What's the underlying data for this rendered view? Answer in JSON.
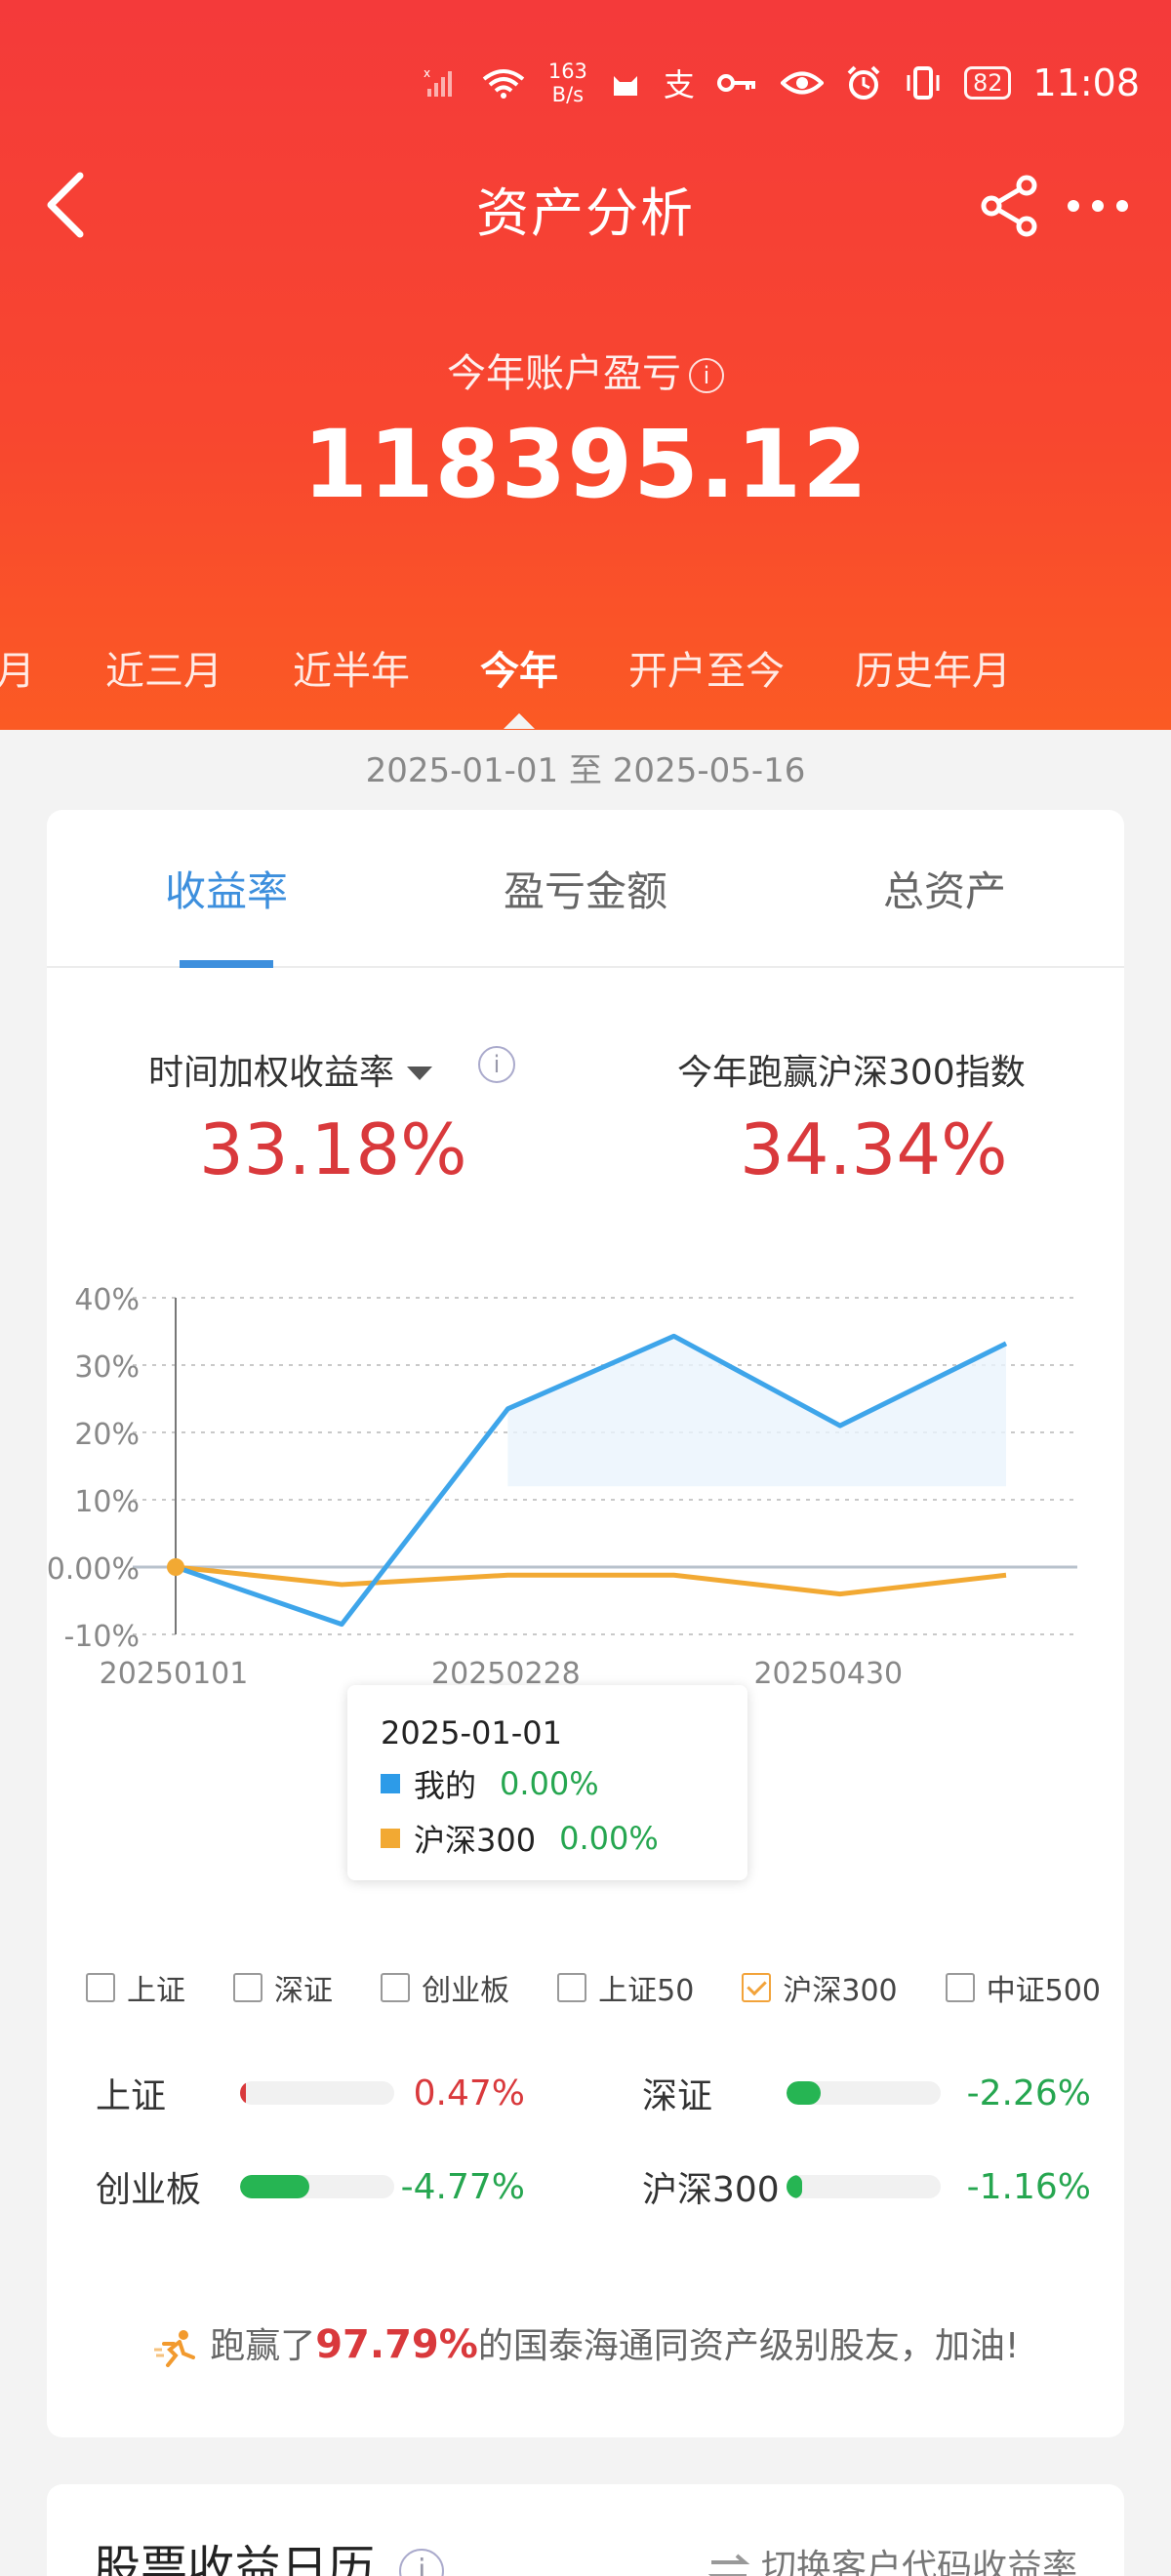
{
  "status_bar": {
    "speed_value": "163",
    "speed_unit": "B/s",
    "battery": "82",
    "time": "11:08"
  },
  "header": {
    "title": "资产分析"
  },
  "summary": {
    "label": "今年账户盈亏",
    "value": "118395.12"
  },
  "periods": [
    "一月",
    "近三月",
    "近半年",
    "今年",
    "开户至今",
    "历史年月"
  ],
  "active_period": "今年",
  "date_range": "2025-01-01 至 2025-05-16",
  "tabs": [
    {
      "label": "收益率",
      "active": true
    },
    {
      "label": "盈亏金额",
      "active": false
    },
    {
      "label": "总资产",
      "active": false
    }
  ],
  "metrics": {
    "left_label": "时间加权收益率",
    "left_value": "33.18%",
    "right_label": "今年跑赢沪深300指数",
    "right_value": "34.34%"
  },
  "tooltip": {
    "date": "2025-01-01",
    "mine_label": "我的",
    "mine_value": "0.00%",
    "hs300_label": "沪深300",
    "hs300_value": "0.00%"
  },
  "chart_data": {
    "type": "line",
    "y_tick_labels": [
      "40%",
      "30%",
      "20%",
      "10%",
      "0.00%",
      "-10%"
    ],
    "x_tick_labels": [
      "20250101",
      "20250228",
      "20250430"
    ],
    "ylim": [
      -10,
      40
    ],
    "grid": true,
    "series": [
      {
        "name": "我的",
        "color": "#3ea5ea",
        "values": [
          0,
          -8.5,
          23.5,
          34.3,
          21.0,
          33.2
        ],
        "area": true
      },
      {
        "name": "沪深300",
        "color": "#f2a933",
        "values": [
          0,
          -2.6,
          -1.2,
          -1.2,
          -4.0,
          -1.2
        ]
      }
    ]
  },
  "index_toggles": [
    {
      "label": "上证",
      "checked": false
    },
    {
      "label": "深证",
      "checked": false
    },
    {
      "label": "创业板",
      "checked": false
    },
    {
      "label": "上证50",
      "checked": false
    },
    {
      "label": "沪深300",
      "checked": true
    },
    {
      "label": "中证500",
      "checked": false
    }
  ],
  "benchmarks": [
    {
      "label": "上证",
      "value": "0.47%",
      "fill": 0.04,
      "color": "#d9393c",
      "tone": "red"
    },
    {
      "label": "深证",
      "value": "-2.26%",
      "fill": 0.22,
      "color": "#26b553",
      "tone": "green"
    },
    {
      "label": "创业板",
      "value": "-4.77%",
      "fill": 0.45,
      "color": "#26b553",
      "tone": "green"
    },
    {
      "label": "沪深300",
      "value": "-1.16%",
      "fill": 0.1,
      "color": "#26b553",
      "tone": "green"
    }
  ],
  "beat": {
    "prefix": "跑赢了",
    "percent": "97.79%",
    "suffix": "的国泰海通同资产级别股友，加油!"
  },
  "calendar": {
    "title": "股票收益日历",
    "switch_label": "切换客户代码收益率"
  }
}
